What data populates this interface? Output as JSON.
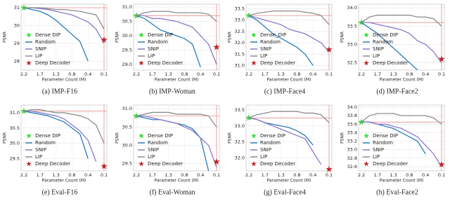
{
  "chart_data": [
    {
      "type": "line",
      "caption": "(a) IMP-F16",
      "ylabel": "PSNR",
      "xlabel": "Parameter Count (M)",
      "grid": true,
      "categories": [
        "2.2",
        null,
        "1.7",
        null,
        "1.3",
        null,
        "0.8",
        null,
        "0.4",
        null,
        "0.1"
      ],
      "ylim": [
        27.5,
        31.2
      ],
      "yticks": [
        28,
        29,
        30,
        31
      ],
      "series": [
        {
          "name": "Dense DIP",
          "color": "#33dd33",
          "marker": "star",
          "values": [
            31.0,
            null,
            null,
            null,
            null,
            null,
            null,
            null,
            null,
            null,
            null
          ]
        },
        {
          "name": "Random",
          "color": "#2b7bb9",
          "values": [
            31.0,
            30.9,
            30.8,
            30.6,
            30.3,
            29.9,
            29.5,
            29.1,
            28.0,
            null,
            null
          ]
        },
        {
          "name": "SNIP",
          "color": "#8a78c8",
          "values": [
            31.0,
            31.0,
            30.95,
            30.9,
            30.8,
            30.7,
            30.6,
            30.4,
            30.2,
            29.8,
            29.0
          ]
        },
        {
          "name": "LIP",
          "color": "#8c8c8c",
          "values": [
            31.0,
            31.0,
            31.0,
            30.95,
            30.9,
            30.9,
            30.85,
            30.8,
            30.7,
            30.6,
            29.8
          ]
        },
        {
          "name": "Deep Decoder",
          "color": "#c0272d",
          "marker": "star",
          "values": [
            null,
            null,
            null,
            null,
            null,
            null,
            null,
            null,
            null,
            null,
            29.2
          ]
        }
      ]
    },
    {
      "type": "line",
      "caption": "(b) IMP-Woman",
      "ylabel": "PSNR",
      "xlabel": "Parameter Count (M)",
      "grid": true,
      "categories": [
        "2.2",
        null,
        "1.7",
        null,
        "1.3",
        null,
        "0.8",
        null,
        "0.4",
        null,
        "0.1"
      ],
      "ylim": [
        28.8,
        31.1
      ],
      "yticks": [
        {
          "value": 29,
          "label": "29.0"
        },
        29.5,
        {
          "value": 30,
          "label": "30.0"
        },
        30.5,
        {
          "value": 31,
          "label": "31.0"
        }
      ],
      "series": [
        {
          "name": "Dense DIP",
          "color": "#33dd33",
          "marker": "star",
          "values": [
            30.7,
            null,
            null,
            null,
            null,
            null,
            null,
            null,
            null,
            null,
            null
          ]
        },
        {
          "name": "Random",
          "color": "#2b7bb9",
          "values": [
            30.7,
            30.6,
            30.4,
            30.2,
            30.1,
            30.0,
            29.9,
            29.7,
            28.9,
            null,
            null
          ]
        },
        {
          "name": "SNIP",
          "color": "#8a78c8",
          "values": [
            30.7,
            30.7,
            30.6,
            30.6,
            30.55,
            30.5,
            30.4,
            30.3,
            30.0,
            29.7,
            29.0
          ]
        },
        {
          "name": "LIP",
          "color": "#8c8c8c",
          "values": [
            30.7,
            30.8,
            30.85,
            30.85,
            30.85,
            30.8,
            30.8,
            30.8,
            30.8,
            30.75,
            30.5
          ]
        },
        {
          "name": "Deep Decoder",
          "color": "#c0272d",
          "marker": "star",
          "values": [
            null,
            null,
            null,
            null,
            null,
            null,
            null,
            null,
            null,
            null,
            29.6
          ]
        }
      ]
    },
    {
      "type": "line",
      "caption": "(c) IMP-Face4",
      "ylabel": "PSNR",
      "xlabel": "Parameter Count (M)",
      "grid": true,
      "categories": [
        "2.2",
        null,
        "1.7",
        null,
        "1.3",
        null,
        "0.8",
        null,
        "0.4",
        null,
        "0.1"
      ],
      "ylim": [
        30.8,
        33.7
      ],
      "yticks": [
        {
          "value": 31,
          "label": "31.0"
        },
        31.5,
        {
          "value": 32,
          "label": "32.0"
        },
        32.5,
        {
          "value": 33,
          "label": "33.0"
        },
        33.5
      ],
      "series": [
        {
          "name": "Dense_DIP",
          "color": "#33dd33",
          "marker": "star",
          "values": [
            33.2,
            null,
            null,
            null,
            null,
            null,
            null,
            null,
            null,
            null,
            null
          ]
        },
        {
          "name": "Random",
          "color": "#2b7bb9",
          "values": [
            33.2,
            33.0,
            32.7,
            32.4,
            32.2,
            32.0,
            31.8,
            31.5,
            31.0,
            null,
            null
          ]
        },
        {
          "name": "SNIP",
          "color": "#8a78c8",
          "values": [
            33.2,
            33.1,
            33.0,
            32.9,
            32.8,
            32.6,
            32.5,
            32.4,
            32.2,
            32.0,
            31.6
          ]
        },
        {
          "name": "LIP",
          "color": "#8c8c8c",
          "values": [
            33.2,
            33.3,
            33.35,
            33.4,
            33.4,
            33.4,
            33.4,
            33.35,
            33.3,
            33.2,
            32.8
          ]
        },
        {
          "name": "Deep Decoder",
          "color": "#c0272d",
          "marker": "star",
          "values": [
            null,
            null,
            null,
            null,
            null,
            null,
            null,
            null,
            null,
            null,
            31.7
          ]
        }
      ]
    },
    {
      "type": "line",
      "caption": "(d) IMP-Face2",
      "ylabel": "PSNR",
      "xlabel": "Parameter Count (M)",
      "grid": true,
      "categories": [
        "2.2",
        null,
        "1.7",
        null,
        "1.3",
        null,
        "0.8",
        null,
        "0.4",
        null,
        "0.1"
      ],
      "ylim": [
        32.3,
        34.1
      ],
      "yticks": [
        32.5,
        {
          "value": 33,
          "label": "33.0"
        },
        33.5,
        {
          "value": 34,
          "label": "34.0"
        }
      ],
      "series": [
        {
          "name": "Dense DIP",
          "color": "#33dd33",
          "marker": "star",
          "values": [
            33.6,
            null,
            null,
            null,
            null,
            null,
            null,
            null,
            null,
            null,
            null
          ]
        },
        {
          "name": "Random",
          "color": "#2b7bb9",
          "values": [
            33.6,
            33.45,
            33.3,
            33.1,
            32.9,
            32.7,
            32.5,
            32.3,
            null,
            null,
            null
          ]
        },
        {
          "name": "SNIP",
          "color": "#8a78c8",
          "values": [
            33.6,
            33.6,
            33.55,
            33.5,
            33.45,
            33.4,
            33.3,
            33.1,
            33.0,
            32.8,
            32.5
          ]
        },
        {
          "name": "LIP",
          "color": "#8c8c8c",
          "values": [
            33.6,
            33.75,
            33.8,
            33.8,
            33.8,
            33.8,
            33.8,
            33.75,
            33.75,
            33.7,
            33.5
          ]
        },
        {
          "name": "Deep Decoder",
          "color": "#c0272d",
          "marker": "star",
          "values": [
            null,
            null,
            null,
            null,
            null,
            null,
            null,
            null,
            null,
            null,
            32.6
          ]
        }
      ]
    },
    {
      "type": "line",
      "caption": "(e) Eval-F16",
      "ylabel": "PSNR",
      "xlabel": "Parameter Count (M)",
      "grid": true,
      "categories": [
        "2.2",
        null,
        "1.7",
        null,
        "1.3",
        null,
        "0.8",
        null,
        "0.4",
        null,
        "0.1"
      ],
      "ylim": [
        29.1,
        31.25
      ],
      "yticks": [
        29.5,
        {
          "value": 30,
          "label": "30.0"
        },
        30.5,
        {
          "value": 31,
          "label": "31.0"
        }
      ],
      "series": [
        {
          "name": "Dense DIP",
          "color": "#33dd33",
          "marker": "star",
          "values": [
            31.05,
            null,
            null,
            null,
            null,
            null,
            null,
            null,
            null,
            null,
            null
          ]
        },
        {
          "name": "Random",
          "color": "#2b7bb9",
          "values": [
            31.05,
            31.0,
            30.95,
            30.9,
            30.8,
            30.7,
            30.5,
            30.3,
            29.5,
            null,
            null
          ]
        },
        {
          "name": "SNIP",
          "color": "#8a78c8",
          "values": [
            31.05,
            31.05,
            31.0,
            30.95,
            30.9,
            30.8,
            30.6,
            30.4,
            30.1,
            29.4,
            null
          ]
        },
        {
          "name": "LIP",
          "color": "#8c8c8c",
          "values": [
            31.05,
            31.1,
            31.1,
            31.05,
            31.0,
            31.0,
            30.95,
            30.9,
            30.8,
            30.6,
            30.0
          ]
        },
        {
          "name": "Deep Decoder",
          "color": "#c0272d",
          "marker": "star",
          "values": [
            null,
            null,
            null,
            null,
            null,
            null,
            null,
            null,
            null,
            null,
            29.25
          ]
        }
      ]
    },
    {
      "type": "line",
      "caption": "(f) Eval-Woman",
      "ylabel": "PSNR",
      "xlabel": "Parameter Count (M)",
      "grid": true,
      "categories": [
        "2.2",
        null,
        "1.7",
        null,
        "1.3",
        null,
        "0.8",
        null,
        "0.4",
        null,
        "0.1"
      ],
      "ylim": [
        29.3,
        31.1
      ],
      "yticks": [
        29.5,
        {
          "value": 30,
          "label": "30.0"
        },
        30.5,
        {
          "value": 31,
          "label": "31.0"
        }
      ],
      "series": [
        {
          "name": "Dense DIP",
          "color": "#33dd33",
          "marker": "star",
          "values": [
            30.8,
            null,
            null,
            null,
            null,
            null,
            null,
            null,
            null,
            null,
            null
          ]
        },
        {
          "name": "Random",
          "color": "#2b7bb9",
          "values": [
            30.8,
            30.75,
            30.7,
            30.7,
            30.65,
            30.6,
            30.55,
            30.45,
            30.2,
            29.3,
            null
          ]
        },
        {
          "name": "SNIP",
          "color": "#8a78c8",
          "values": [
            30.8,
            30.8,
            30.75,
            30.7,
            30.65,
            30.6,
            30.5,
            30.4,
            30.2,
            30.0,
            29.4
          ]
        },
        {
          "name": "LIP",
          "color": "#8c8c8c",
          "values": [
            30.8,
            30.85,
            30.9,
            30.9,
            30.9,
            30.85,
            30.85,
            30.85,
            30.85,
            30.8,
            30.5
          ]
        },
        {
          "name": "Deep Decoder",
          "color": "#c0272d",
          "marker": "star",
          "values": [
            null,
            null,
            null,
            null,
            null,
            null,
            null,
            null,
            null,
            null,
            29.55
          ]
        }
      ]
    },
    {
      "type": "line",
      "caption": "(g) Eval-Face4",
      "ylabel": "PSNR",
      "xlabel": "Parameter Count (M)",
      "grid": true,
      "categories": [
        "2.2",
        null,
        "1.7",
        null,
        "1.3",
        null,
        "0.8",
        null,
        "0.4",
        null,
        "0.1"
      ],
      "ylim": [
        31.6,
        33.65
      ],
      "yticks": [
        {
          "value": 32,
          "label": "32.0"
        },
        32.5,
        {
          "value": 33,
          "label": "33.0"
        },
        33.5
      ],
      "series": [
        {
          "name": "Dense DIP",
          "color": "#33dd33",
          "marker": "star",
          "values": [
            33.25,
            null,
            null,
            null,
            null,
            null,
            null,
            null,
            null,
            null,
            null
          ]
        },
        {
          "name": "Random",
          "color": "#2b7bb9",
          "values": [
            33.25,
            33.2,
            33.1,
            33.05,
            33.0,
            32.95,
            32.85,
            32.7,
            32.4,
            null,
            null
          ]
        },
        {
          "name": "SNIP",
          "color": "#8a78c8",
          "values": [
            33.25,
            33.2,
            33.1,
            33.0,
            32.9,
            32.8,
            32.7,
            32.6,
            32.2,
            31.8,
            null
          ]
        },
        {
          "name": "LIP",
          "color": "#8c8c8c",
          "values": [
            33.25,
            33.35,
            33.4,
            33.45,
            33.45,
            33.45,
            33.45,
            33.4,
            33.4,
            33.35,
            33.1
          ]
        },
        {
          "name": "Deep Decoder",
          "color": "#c0272d",
          "marker": "star",
          "values": [
            null,
            null,
            null,
            null,
            null,
            null,
            null,
            null,
            null,
            null,
            31.65
          ]
        }
      ]
    },
    {
      "type": "line",
      "caption": "(h) Eval-Face2",
      "ylabel": "PSNR",
      "xlabel": "Parameter Count (M)",
      "grid": true,
      "categories": [
        "2.2",
        null,
        "1.7",
        null,
        "1.3",
        null,
        "0.8",
        null,
        "0.4",
        null,
        "0.1"
      ],
      "ylim": [
        32.5,
        34.05
      ],
      "yticks": [
        32.6,
        32.8,
        {
          "value": 33,
          "label": "33.0"
        },
        33.2,
        33.4,
        33.6,
        33.8,
        {
          "value": 34,
          "label": "34.0"
        }
      ],
      "series": [
        {
          "name": "Dense DIP",
          "color": "#33dd33",
          "marker": "star",
          "values": [
            33.65,
            null,
            null,
            null,
            null,
            null,
            null,
            null,
            null,
            null,
            null
          ]
        },
        {
          "name": "Random",
          "color": "#2b7bb9",
          "values": [
            33.65,
            33.65,
            33.6,
            33.55,
            33.5,
            33.4,
            33.3,
            33.2,
            32.9,
            null,
            null
          ]
        },
        {
          "name": "SNIP",
          "color": "#8a78c8",
          "values": [
            33.65,
            33.65,
            33.6,
            33.6,
            33.55,
            33.5,
            33.4,
            33.3,
            33.1,
            32.9,
            32.6
          ]
        },
        {
          "name": "LIP",
          "color": "#8c8c8c",
          "values": [
            33.65,
            33.8,
            33.85,
            33.85,
            33.85,
            33.8,
            33.8,
            33.8,
            33.8,
            33.75,
            33.6
          ]
        },
        {
          "name": "Deep Decoder",
          "color": "#c0272d",
          "marker": "star",
          "values": [
            null,
            null,
            null,
            null,
            null,
            null,
            null,
            null,
            null,
            null,
            32.65
          ]
        }
      ]
    }
  ]
}
